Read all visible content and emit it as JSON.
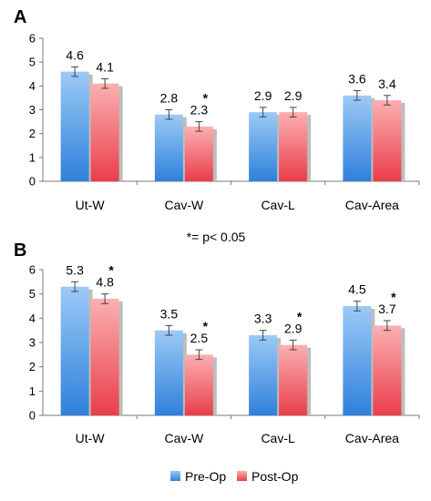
{
  "chart_data": [
    {
      "panel": "A",
      "type": "bar",
      "categories": [
        "Ut-W",
        "Cav-W",
        "Cav-L",
        "Cav-Area"
      ],
      "ylim": [
        0,
        6
      ],
      "yticks": [
        "0",
        "1",
        "2",
        "3",
        "4",
        "5",
        "6"
      ],
      "series": [
        {
          "name": "Pre-Op",
          "values": [
            4.6,
            2.8,
            2.9,
            3.6
          ],
          "labels": [
            "4.6",
            "2.8",
            "2.9",
            "3.6"
          ],
          "errors": [
            0.2,
            0.2,
            0.2,
            0.2
          ]
        },
        {
          "name": "Post-Op",
          "values": [
            4.1,
            2.3,
            2.9,
            3.4
          ],
          "labels": [
            "4.1",
            "2.3",
            "2.9",
            "3.4"
          ],
          "errors": [
            0.2,
            0.2,
            0.2,
            0.2
          ]
        }
      ],
      "significant": [
        false,
        true,
        false,
        false
      ],
      "grid": false
    },
    {
      "panel": "B",
      "type": "bar",
      "categories": [
        "Ut-W",
        "Cav-W",
        "Cav-L",
        "Cav-Area"
      ],
      "ylim": [
        0,
        6
      ],
      "yticks": [
        "0",
        "1",
        "2",
        "3",
        "4",
        "5",
        "6"
      ],
      "series": [
        {
          "name": "Pre-Op",
          "values": [
            5.3,
            3.5,
            3.3,
            4.5
          ],
          "labels": [
            "5.3",
            "3.5",
            "3.3",
            "4.5"
          ],
          "errors": [
            0.2,
            0.2,
            0.2,
            0.2
          ]
        },
        {
          "name": "Post-Op",
          "values": [
            4.8,
            2.5,
            2.9,
            3.7
          ],
          "labels": [
            "4.8",
            "2.5",
            "2.9",
            "3.7"
          ],
          "errors": [
            0.2,
            0.2,
            0.2,
            0.2
          ]
        }
      ],
      "significant": [
        true,
        true,
        true,
        true
      ],
      "grid": false
    }
  ],
  "significance_note": "*= p< 0.05",
  "significance_marker": "*",
  "legend": [
    {
      "name": "Pre-Op",
      "color": "#3b8de0"
    },
    {
      "name": "Post-Op",
      "color": "#ee4a55"
    }
  ],
  "colors": {
    "pre": "#3b8de0",
    "pre_light": "#9ccaf5",
    "post": "#ee4a55",
    "post_light": "#fbb0b2",
    "shadow": "#bdbdbd"
  }
}
